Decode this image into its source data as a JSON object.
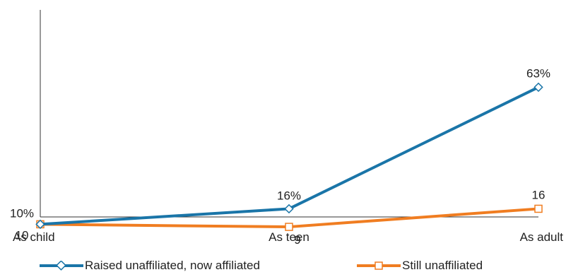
{
  "chart_data": {
    "type": "line",
    "categories": [
      "As child",
      "As teen",
      "As adult"
    ],
    "series": [
      {
        "name": "Raised unaffiliated, now affiliated",
        "values": [
          10,
          16,
          63
        ],
        "labels": [
          "10%",
          "16%",
          "63%"
        ],
        "color": "#1a75a8",
        "marker": "diamond"
      },
      {
        "name": "Still unaffiliated",
        "values": [
          10,
          9,
          16
        ],
        "labels": [
          "10",
          "9",
          "16"
        ],
        "color": "#f07d21",
        "marker": "square"
      }
    ],
    "ylim": [
      0,
      100
    ],
    "grid": false,
    "legend_position": "bottom"
  }
}
